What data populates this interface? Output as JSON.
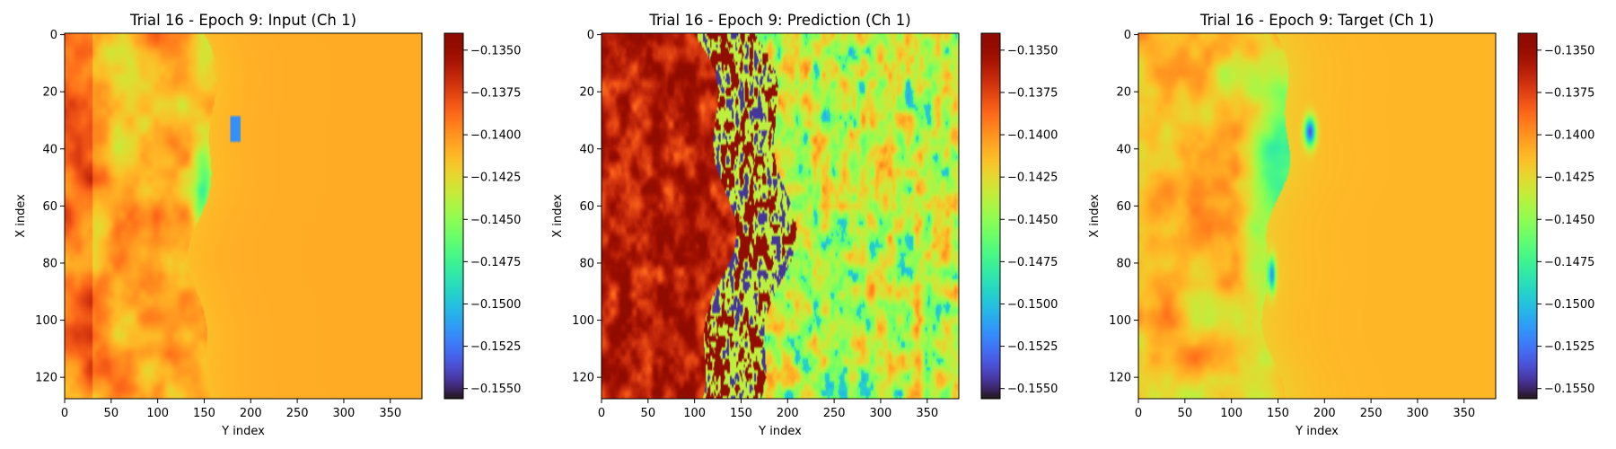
{
  "chart_data": [
    {
      "type": "heatmap",
      "field": "input",
      "title": "Trial 16 - Epoch 9: Input (Ch 1)",
      "xlabel": "Y index",
      "ylabel": "X index",
      "xlim": [
        0,
        383
      ],
      "ylim": [
        127,
        0
      ],
      "xticks": [
        "0",
        "50",
        "100",
        "150",
        "200",
        "250",
        "300",
        "350"
      ],
      "yticks": [
        "0",
        "20",
        "40",
        "60",
        "80",
        "100",
        "120"
      ],
      "colormap": "turbo",
      "colorbar_range": [
        -0.1556,
        -0.134
      ],
      "colorbar_ticks": [
        "−0.1350",
        "−0.1375",
        "−0.1400",
        "−0.1425",
        "−0.1450",
        "−0.1475",
        "−0.1500",
        "−0.1525",
        "−0.1550"
      ]
    },
    {
      "type": "heatmap",
      "field": "prediction",
      "title": "Trial 16 - Epoch 9: Prediction (Ch 1)",
      "xlabel": "Y index",
      "ylabel": "X index",
      "xlim": [
        0,
        383
      ],
      "ylim": [
        127,
        0
      ],
      "xticks": [
        "0",
        "50",
        "100",
        "150",
        "200",
        "250",
        "300",
        "350"
      ],
      "yticks": [
        "0",
        "20",
        "40",
        "60",
        "80",
        "100",
        "120"
      ],
      "colormap": "turbo",
      "colorbar_range": [
        -0.1556,
        -0.134
      ],
      "colorbar_ticks": [
        "−0.1350",
        "−0.1375",
        "−0.1400",
        "−0.1425",
        "−0.1450",
        "−0.1475",
        "−0.1500",
        "−0.1525",
        "−0.1550"
      ]
    },
    {
      "type": "heatmap",
      "field": "target",
      "title": "Trial 16 - Epoch 9: Target (Ch 1)",
      "xlabel": "Y index",
      "ylabel": "X index",
      "xlim": [
        0,
        383
      ],
      "ylim": [
        127,
        0
      ],
      "xticks": [
        "0",
        "50",
        "100",
        "150",
        "200",
        "250",
        "300",
        "350"
      ],
      "yticks": [
        "0",
        "20",
        "40",
        "60",
        "80",
        "100",
        "120"
      ],
      "colormap": "turbo",
      "colorbar_range": [
        -0.1556,
        -0.134
      ],
      "colorbar_ticks": [
        "−0.1350",
        "−0.1375",
        "−0.1400",
        "−0.1425",
        "−0.1450",
        "−0.1475",
        "−0.1500",
        "−0.1525",
        "−0.1550"
      ]
    }
  ]
}
